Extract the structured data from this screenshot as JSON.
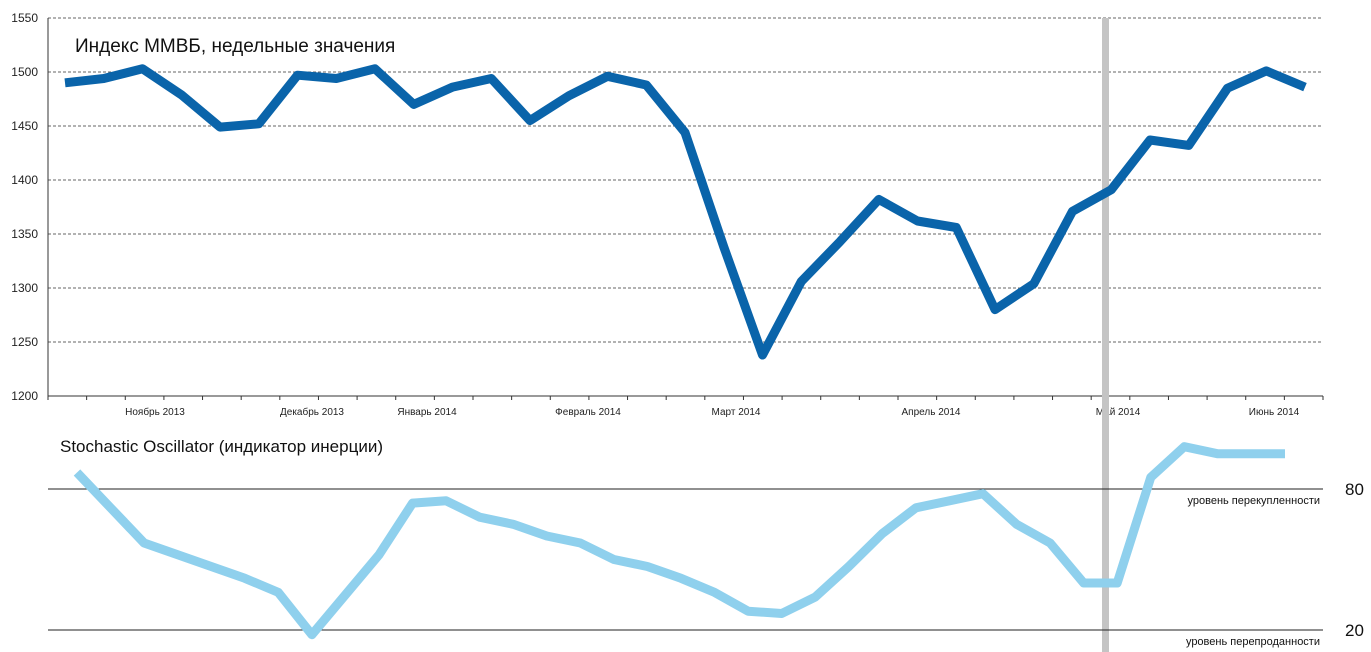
{
  "chart_data": [
    {
      "type": "line",
      "title": "Индекс ММВБ, недельные значения",
      "ylim": [
        1200,
        1550
      ],
      "yticks": [
        1200,
        1250,
        1300,
        1350,
        1400,
        1450,
        1500,
        1550
      ],
      "grid": true,
      "x_month_labels": [
        "Ноябрь 2013",
        "Декабрь 2013",
        "Январь 2014",
        "Февраль 2014",
        "Март 2014",
        "Апрель 2014",
        "Май 2014",
        "Июнь 2014"
      ],
      "series": [
        {
          "color": "#0a64aa",
          "values": [
            1490,
            1494,
            1503,
            1479,
            1449,
            1452,
            1497,
            1494,
            1503,
            1470,
            1486,
            1494,
            1455,
            1478,
            1496,
            1488,
            1444,
            1338,
            1238,
            1306,
            1343,
            1382,
            1362,
            1356,
            1280,
            1304,
            1371,
            1391,
            1437,
            1432,
            1485,
            1501,
            1486
          ]
        }
      ]
    },
    {
      "type": "line",
      "title": "Stochastic Oscillator (индикатор инерции)",
      "levels": [
        {
          "value": 80,
          "label": "уровень перекупленности"
        },
        {
          "value": 20,
          "label": "уровень перепроданности"
        }
      ],
      "series": [
        {
          "color": "#8fd0ed",
          "values": [
            87,
            72,
            57,
            52,
            47,
            42,
            36,
            18,
            35,
            52,
            74,
            75,
            68,
            65,
            60,
            57,
            50,
            47,
            42,
            36,
            28,
            27,
            34,
            47,
            61,
            72,
            75,
            78,
            65,
            57,
            40,
            40,
            85,
            98,
            95,
            95,
            95
          ]
        }
      ]
    }
  ],
  "colors": {
    "main_line": "#0a64aa",
    "osc_line": "#8fd0ed",
    "marker": "#c4c4c4"
  }
}
